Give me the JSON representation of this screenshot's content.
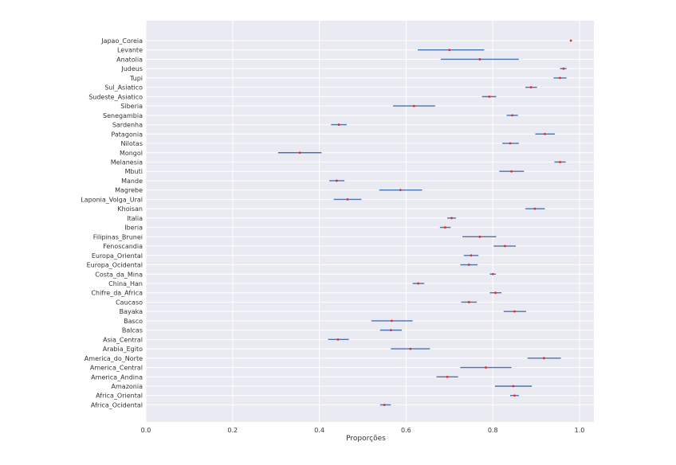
{
  "chart_data": {
    "type": "errorbar",
    "xlabel": "Proporções",
    "ylabel": "",
    "title": "",
    "xlim": [
      0.0,
      1.0
    ],
    "x_ticks": [
      "0.0",
      "0.2",
      "0.4",
      "0.6",
      "0.8",
      "1.0"
    ],
    "grid": true,
    "colors": {
      "background": "#eaeaf2",
      "grid": "#ffffff",
      "errorbar": "#4c72b0",
      "point": "#e8282b"
    },
    "categories": [
      "Japao_Coreia",
      "Levante",
      "Anatolia",
      "Judeus",
      "Tupi",
      "Sul_Asiatico",
      "Sudeste_Asiatico",
      "Siberia",
      "Senegambia",
      "Sardenha",
      "Patagonia",
      "Nilotas",
      "Mongol",
      "Melanesia",
      "Mbuti",
      "Mande",
      "Magrebe",
      "Laponia_Volga_Ural",
      "Khoisan",
      "Italia",
      "Iberia",
      "Filipinas_Brunei",
      "Fenoscandia",
      "Europa_Oriental",
      "Europa_Ocidental",
      "Costa_da_Mina",
      "China_Han",
      "Chifre_da_Africa",
      "Caucaso",
      "Bayaka",
      "Basco",
      "Balcas",
      "Asia_Central",
      "Arabia_Egito",
      "America_do_Norte",
      "America_Central",
      "America_Andina",
      "Amazonia",
      "Africa_Oriental",
      "Africa_Ocidental"
    ],
    "values": [
      0.98,
      0.7,
      0.77,
      0.963,
      0.955,
      0.888,
      0.792,
      0.618,
      0.845,
      0.445,
      0.92,
      0.84,
      0.355,
      0.955,
      0.843,
      0.44,
      0.587,
      0.465,
      0.897,
      0.705,
      0.69,
      0.77,
      0.828,
      0.75,
      0.745,
      0.8,
      0.628,
      0.806,
      0.745,
      0.85,
      0.567,
      0.565,
      0.443,
      0.61,
      0.918,
      0.784,
      0.695,
      0.847,
      0.85,
      0.55
    ],
    "lower": [
      0.98,
      0.627,
      0.68,
      0.955,
      0.94,
      0.875,
      0.775,
      0.57,
      0.832,
      0.427,
      0.898,
      0.822,
      0.305,
      0.942,
      0.815,
      0.423,
      0.538,
      0.433,
      0.875,
      0.695,
      0.678,
      0.73,
      0.802,
      0.733,
      0.725,
      0.793,
      0.615,
      0.793,
      0.727,
      0.825,
      0.52,
      0.54,
      0.42,
      0.565,
      0.88,
      0.725,
      0.67,
      0.805,
      0.84,
      0.54
    ],
    "upper": [
      0.98,
      0.78,
      0.86,
      0.97,
      0.97,
      0.902,
      0.808,
      0.667,
      0.858,
      0.463,
      0.943,
      0.86,
      0.405,
      0.968,
      0.872,
      0.458,
      0.637,
      0.497,
      0.92,
      0.715,
      0.703,
      0.808,
      0.853,
      0.767,
      0.765,
      0.807,
      0.642,
      0.82,
      0.763,
      0.877,
      0.615,
      0.59,
      0.468,
      0.655,
      0.957,
      0.843,
      0.72,
      0.89,
      0.86,
      0.565
    ]
  }
}
